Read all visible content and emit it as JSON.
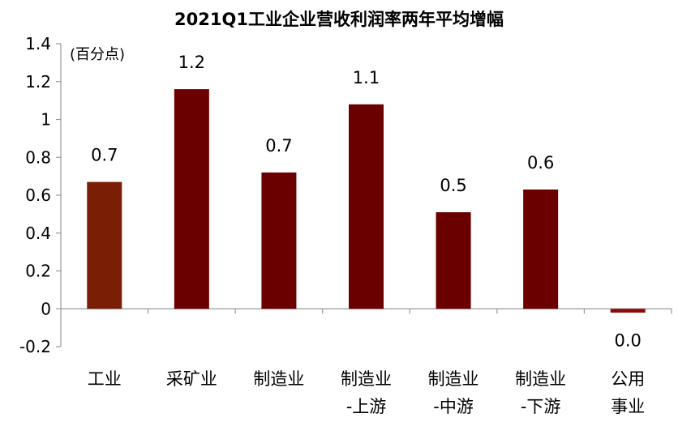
{
  "chart_data": {
    "type": "bar",
    "title": "2021Q1工业企业营收利润率两年平均增幅",
    "unit": "(百分点)",
    "categories": [
      [
        "工业"
      ],
      [
        "采矿业"
      ],
      [
        "制造业"
      ],
      [
        "制造业",
        "-上游"
      ],
      [
        "制造业",
        "-中游"
      ],
      [
        "制造业",
        "-下游"
      ],
      [
        "公用",
        "事业"
      ]
    ],
    "values": [
      0.67,
      1.16,
      0.72,
      1.08,
      0.51,
      0.63,
      -0.02
    ],
    "data_labels": [
      "0.7",
      "1.2",
      "0.7",
      "1.1",
      "0.5",
      "0.6",
      "0.0"
    ],
    "bar_colors": [
      "#7a1f05",
      "#6b0000",
      "#6b0000",
      "#6b0000",
      "#6b0000",
      "#6b0000",
      "#8b0a0a"
    ],
    "ylim": [
      -0.2,
      1.4
    ],
    "yticks": [
      "-0.2",
      "0",
      "0.2",
      "0.4",
      "0.6",
      "0.8",
      "1",
      "1.2",
      "1.4"
    ],
    "ytick_values": [
      -0.2,
      0,
      0.2,
      0.4,
      0.6,
      0.8,
      1.0,
      1.2,
      1.4
    ],
    "grid": false,
    "legend": "none"
  }
}
